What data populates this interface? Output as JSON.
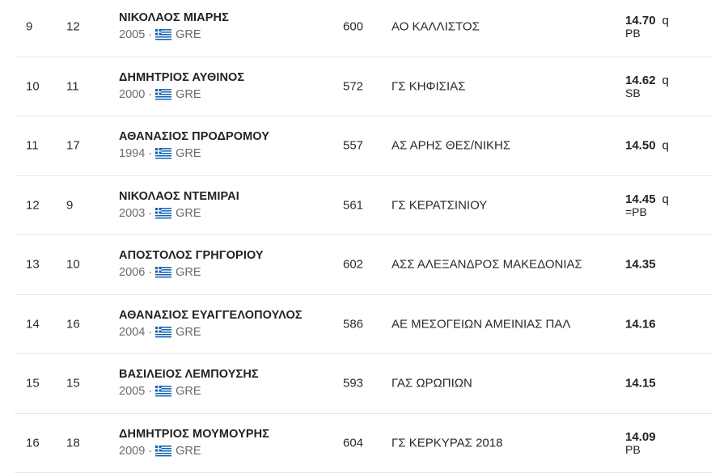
{
  "results": [
    {
      "place": "9",
      "lane": "12",
      "name": "ΝΙΚΟΛΑΟΣ ΜΙΑΡΗΣ",
      "year": "2005",
      "country": "GRE",
      "bib": "600",
      "club": "ΑΟ ΚΑΛΛΙΣΤΟΣ",
      "mark": "14.70",
      "qual": "q",
      "record": "PB"
    },
    {
      "place": "10",
      "lane": "11",
      "name": "ΔΗΜΗΤΡΙΟΣ ΑΥΘΙΝΟΣ",
      "year": "2000",
      "country": "GRE",
      "bib": "572",
      "club": "ΓΣ ΚΗΦΙΣΙΑΣ",
      "mark": "14.62",
      "qual": "q",
      "record": "SB"
    },
    {
      "place": "11",
      "lane": "17",
      "name": "ΑΘΑΝΑΣΙΟΣ ΠΡΟΔΡΟΜΟΥ",
      "year": "1994",
      "country": "GRE",
      "bib": "557",
      "club": "ΑΣ ΑΡΗΣ ΘΕΣ/ΝΙΚΗΣ",
      "mark": "14.50",
      "qual": "q",
      "record": ""
    },
    {
      "place": "12",
      "lane": "9",
      "name": "ΝΙΚΟΛΑΟΣ ΝΤΕΜΙΡΑΙ",
      "year": "2003",
      "country": "GRE",
      "bib": "561",
      "club": "ΓΣ ΚΕΡΑΤΣΙΝΙΟΥ",
      "mark": "14.45",
      "qual": "q",
      "record": "=PB"
    },
    {
      "place": "13",
      "lane": "10",
      "name": "ΑΠΟΣΤΟΛΟΣ ΓΡΗΓΟΡΙΟΥ",
      "year": "2006",
      "country": "GRE",
      "bib": "602",
      "club": "ΑΣΣ ΑΛΕΞΑΝΔΡΟΣ ΜΑΚΕΔΟΝΙΑΣ",
      "mark": "14.35",
      "qual": "",
      "record": ""
    },
    {
      "place": "14",
      "lane": "16",
      "name": "ΑΘΑΝΑΣΙΟΣ ΕΥΑΓΓΕΛΟΠΟΥΛΟΣ",
      "year": "2004",
      "country": "GRE",
      "bib": "586",
      "club": "ΑΕ ΜΕΣΟΓΕΙΩΝ ΑΜΕΙΝΙΑΣ ΠΑΛ",
      "mark": "14.16",
      "qual": "",
      "record": ""
    },
    {
      "place": "15",
      "lane": "15",
      "name": "ΒΑΣΙΛΕΙΟΣ ΛΕΜΠΟΥΣΗΣ",
      "year": "2005",
      "country": "GRE",
      "bib": "593",
      "club": "ΓΑΣ ΩΡΩΠΙΩΝ",
      "mark": "14.15",
      "qual": "",
      "record": ""
    },
    {
      "place": "16",
      "lane": "18",
      "name": "ΔΗΜΗΤΡΙΟΣ ΜΟΥΜΟΥΡΗΣ",
      "year": "2009",
      "country": "GRE",
      "bib": "604",
      "club": "ΓΣ ΚΕΡΚΥΡΑΣ 2018",
      "mark": "14.09",
      "qual": "",
      "record": "PB"
    }
  ],
  "separator": "·",
  "flag_icon": "greece-flag-icon",
  "colors": {
    "flag_blue": "#0d5eaf",
    "flag_white": "#ffffff",
    "divider": "#e6e6e6",
    "meta_text": "#6b6b6b"
  }
}
